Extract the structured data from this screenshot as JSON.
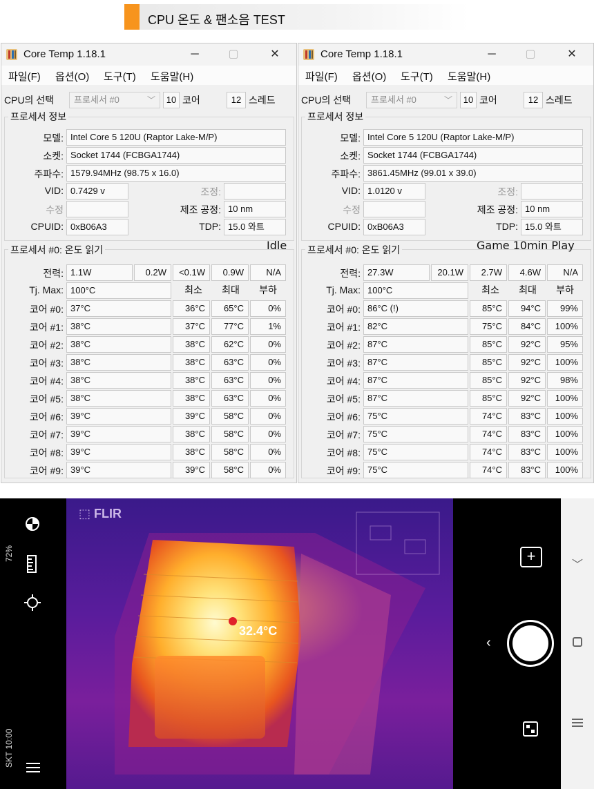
{
  "banner": {
    "title": "CPU 온도 & 팬소음 TEST",
    "accent_color": "#f7941d"
  },
  "common": {
    "app_title": "Core Temp 1.18.1",
    "menu": [
      "파일(F)",
      "옵션(O)",
      "도구(T)",
      "도움말(H)"
    ],
    "cpu_select_label": "CPU의 선택",
    "cpu_select_value": "프로세서 #0",
    "cores_value": "10",
    "cores_label": "코어",
    "threads_value": "12",
    "threads_label": "스레드",
    "processor_info_title": "프로세서 정보",
    "model_label": "모델:",
    "model_value": "Intel Core 5 120U (Raptor Lake-M/P)",
    "socket_label": "소켓:",
    "socket_value": "Socket 1744 (FCBGA1744)",
    "freq_label": "주파수:",
    "vid_label": "VID:",
    "mod_label": "조정:",
    "rev_label": "수정",
    "lithography_label": "제조 공정:",
    "lithography_value": "10 nm",
    "cpuid_label": "CPUID:",
    "cpuid_value": "0xB06A3",
    "tdp_label": "TDP:",
    "tdp_value": "15.0 와트",
    "temp_section_title": "프로세서 #0: 온도 읽기",
    "power_label": "전력:",
    "tjmax_label": "Tj. Max:",
    "tjmax_value": "100°C",
    "col_min": "최소",
    "col_max": "최대",
    "col_load": "부하",
    "core_labels": [
      "코어 #0:",
      "코어 #1:",
      "코어 #2:",
      "코어 #3:",
      "코어 #4:",
      "코어 #5:",
      "코어 #6:",
      "코어 #7:",
      "코어 #8:",
      "코어 #9:"
    ]
  },
  "left": {
    "state_label": "Idle",
    "frequency": "1579.94MHz (98.75 x 16.0)",
    "vid": "0.7429 v",
    "power": [
      "1.1W",
      "0.2W",
      "<0.1W",
      "0.9W",
      "N/A"
    ],
    "cores": [
      {
        "cur": "37°C",
        "min": "36°C",
        "max": "65°C",
        "load": "0%"
      },
      {
        "cur": "38°C",
        "min": "37°C",
        "max": "77°C",
        "load": "1%"
      },
      {
        "cur": "38°C",
        "min": "38°C",
        "max": "62°C",
        "load": "0%"
      },
      {
        "cur": "38°C",
        "min": "38°C",
        "max": "63°C",
        "load": "0%"
      },
      {
        "cur": "38°C",
        "min": "38°C",
        "max": "63°C",
        "load": "0%"
      },
      {
        "cur": "38°C",
        "min": "38°C",
        "max": "63°C",
        "load": "0%"
      },
      {
        "cur": "39°C",
        "min": "39°C",
        "max": "58°C",
        "load": "0%"
      },
      {
        "cur": "39°C",
        "min": "38°C",
        "max": "58°C",
        "load": "0%"
      },
      {
        "cur": "39°C",
        "min": "38°C",
        "max": "58°C",
        "load": "0%"
      },
      {
        "cur": "39°C",
        "min": "39°C",
        "max": "58°C",
        "load": "0%"
      }
    ]
  },
  "right": {
    "state_label": "Game 10min Play",
    "frequency": "3861.45MHz (99.01 x 39.0)",
    "vid": "1.0120 v",
    "power": [
      "27.3W",
      "20.1W",
      "2.7W",
      "4.6W",
      "N/A"
    ],
    "cores": [
      {
        "cur": "86°C (!)",
        "min": "85°C",
        "max": "94°C",
        "load": "99%"
      },
      {
        "cur": "82°C",
        "min": "75°C",
        "max": "84°C",
        "load": "100%"
      },
      {
        "cur": "87°C",
        "min": "85°C",
        "max": "92°C",
        "load": "95%"
      },
      {
        "cur": "87°C",
        "min": "85°C",
        "max": "92°C",
        "load": "100%"
      },
      {
        "cur": "87°C",
        "min": "85°C",
        "max": "92°C",
        "load": "98%"
      },
      {
        "cur": "87°C",
        "min": "85°C",
        "max": "92°C",
        "load": "100%"
      },
      {
        "cur": "75°C",
        "min": "74°C",
        "max": "83°C",
        "load": "100%"
      },
      {
        "cur": "75°C",
        "min": "74°C",
        "max": "83°C",
        "load": "100%"
      },
      {
        "cur": "75°C",
        "min": "74°C",
        "max": "83°C",
        "load": "100%"
      },
      {
        "cur": "75°C",
        "min": "74°C",
        "max": "83°C",
        "load": "100%"
      }
    ]
  },
  "phone": {
    "status_top": "72%",
    "status_bottom": "SKT 10:00",
    "brand": "FLIR",
    "spot_temp": "32.4°C",
    "icons": [
      "palette-icon",
      "ruler-icon",
      "crosshair-icon",
      "menu-icon",
      "plus-icon",
      "shutter-button",
      "gallery-icon",
      "chevron-down-icon",
      "home-icon",
      "recents-icon",
      "back-chevron-icon"
    ]
  }
}
